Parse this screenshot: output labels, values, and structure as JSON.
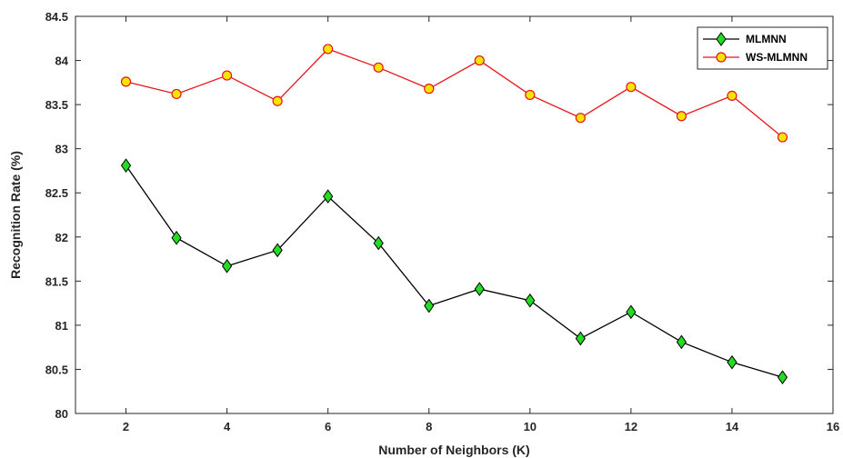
{
  "chart_data": {
    "type": "line",
    "title": "",
    "xlabel": "Number of Neighbors (K)",
    "ylabel": "Recognition Rate (%)",
    "xlim": [
      1,
      16
    ],
    "ylim": [
      80,
      84.5
    ],
    "xticks": [
      2,
      4,
      6,
      8,
      10,
      12,
      14,
      16
    ],
    "yticks": [
      80,
      80.5,
      81,
      81.5,
      82,
      82.5,
      83,
      83.5,
      84,
      84.5
    ],
    "grid": false,
    "legend_position": "top-right",
    "x": [
      2,
      3,
      4,
      5,
      6,
      7,
      8,
      9,
      10,
      11,
      12,
      13,
      14,
      15
    ],
    "series": [
      {
        "name": "MLMNN",
        "line_color": "#000000",
        "marker": "diamond",
        "marker_fill": "#22dd22",
        "values": [
          82.81,
          81.99,
          81.67,
          81.85,
          82.46,
          81.93,
          81.22,
          81.41,
          81.28,
          80.85,
          81.15,
          80.81,
          80.58,
          80.41
        ]
      },
      {
        "name": "WS-MLMNN",
        "line_color": "#e8141a",
        "marker": "circle",
        "marker_fill": "#f5e600",
        "values": [
          83.76,
          83.62,
          83.83,
          83.54,
          84.13,
          83.92,
          83.68,
          84.0,
          83.61,
          83.35,
          83.7,
          83.37,
          83.6,
          83.13
        ]
      }
    ]
  }
}
